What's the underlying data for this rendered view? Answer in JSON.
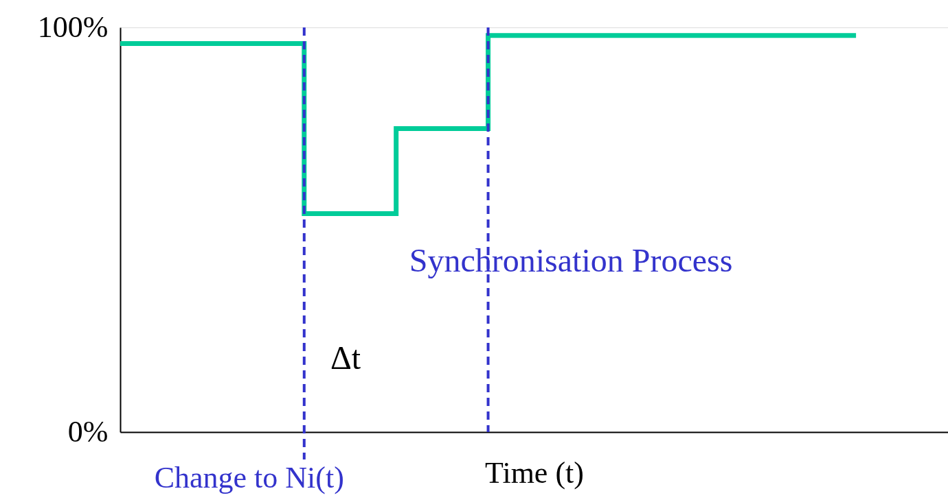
{
  "chart_data": {
    "type": "step",
    "xlabel": "Time (t)",
    "categories": [
      null,
      null,
      null,
      null,
      null,
      null,
      null,
      null,
      null
    ],
    "series": [
      {
        "color": "#00cc99",
        "values": [
          96,
          96,
          54,
          75,
          98,
          98,
          98,
          98,
          98
        ]
      }
    ],
    "ylim": [
      0,
      100
    ],
    "yticks": [
      {
        "value": 0,
        "label": "0%"
      },
      {
        "value": 100,
        "label": "100%"
      }
    ],
    "tick_labels": "y",
    "marker": "none",
    "line_style": "solid",
    "annotations": [
      "Change to Ni(t)",
      "Synchronisation Process",
      "Δt"
    ]
  }
}
